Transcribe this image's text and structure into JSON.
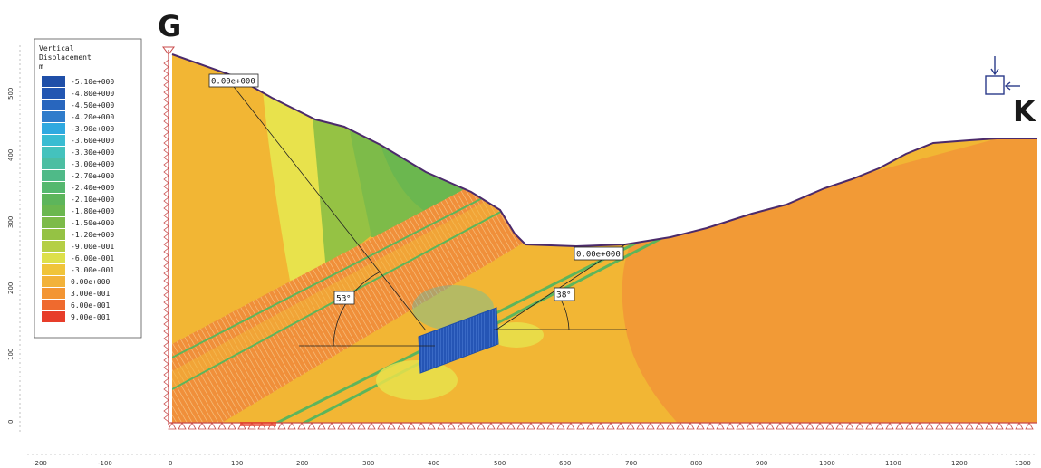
{
  "labels": {
    "left_station": "G",
    "right_station": "K"
  },
  "legend": {
    "title": [
      "Vertical",
      "Displacement",
      "m"
    ],
    "items": [
      {
        "label": "-5.10e+000",
        "color": "#1f4fa8"
      },
      {
        "label": "-4.80e+000",
        "color": "#2256b2"
      },
      {
        "label": "-4.50e+000",
        "color": "#2866be"
      },
      {
        "label": "-4.20e+000",
        "color": "#2f7ccb"
      },
      {
        "label": "-3.90e+000",
        "color": "#2fa9e0"
      },
      {
        "label": "-3.60e+000",
        "color": "#39bcd2"
      },
      {
        "label": "-3.30e+000",
        "color": "#44c2bd"
      },
      {
        "label": "-3.00e+000",
        "color": "#4cbea2"
      },
      {
        "label": "-2.70e+000",
        "color": "#4fba88"
      },
      {
        "label": "-2.40e+000",
        "color": "#55b86f"
      },
      {
        "label": "-2.10e+000",
        "color": "#5db55b"
      },
      {
        "label": "-1.80e+000",
        "color": "#6bb74f"
      },
      {
        "label": "-1.50e+000",
        "color": "#7dbb49"
      },
      {
        "label": "-1.20e+000",
        "color": "#95c244"
      },
      {
        "label": "-9.00e-001",
        "color": "#b5cf45"
      },
      {
        "label": "-6.00e-001",
        "color": "#dde04a"
      },
      {
        "label": "-3.00e-001",
        "color": "#f0c43a"
      },
      {
        "label": "0.00e+000",
        "color": "#f2b23a"
      },
      {
        "label": "3.00e-001",
        "color": "#f39533"
      },
      {
        "label": "6.00e-001",
        "color": "#ef6a2e"
      },
      {
        "label": "9.00e-001",
        "color": "#e73d2a"
      }
    ]
  },
  "annotations": {
    "label_left_top": "0.00e+000",
    "label_right": "0.00e+000",
    "angle_left": "53°",
    "angle_right": "38°"
  },
  "axes": {
    "x_ticks": [
      "-200",
      "-100",
      "0",
      "100",
      "200",
      "300",
      "400",
      "500",
      "600",
      "700",
      "800",
      "900",
      "1000",
      "1100",
      "1200",
      "1300"
    ],
    "y_ticks": [
      "500",
      "400",
      "300",
      "200",
      "100",
      "0"
    ]
  },
  "colors": {
    "base_orange": "#f29a36",
    "light_orange": "#f2b634",
    "yellow": "#e8e24c",
    "green": "#7dbb49",
    "blue": "#2555b5",
    "outline": "#4b2a6b"
  }
}
